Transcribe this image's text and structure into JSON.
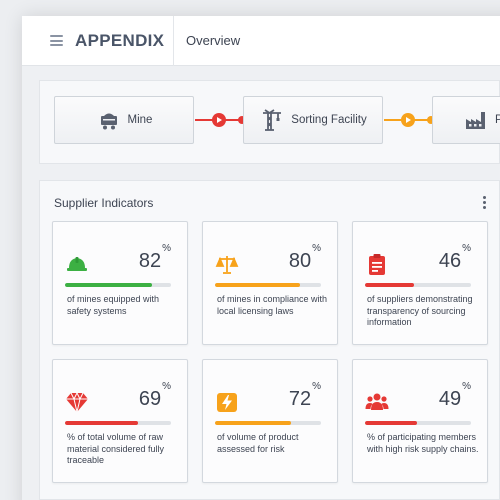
{
  "header": {
    "app_title": "APPENDIX",
    "tab": "Overview"
  },
  "flow": {
    "nodes": [
      {
        "label": "Mine",
        "icon": "mine-cart-icon"
      },
      {
        "label": "Sorting Facility",
        "icon": "crane-icon"
      },
      {
        "label": "Pr",
        "icon": "factory-icon"
      }
    ],
    "colors": {
      "first_link": "#e53935",
      "second_link": "#f7a21b"
    }
  },
  "indicators": {
    "title": "Supplier Indicators",
    "cards": [
      {
        "value": "82",
        "unit": "%",
        "fraction": 0.82,
        "color": "#3cb043",
        "icon": "hard-hat-icon",
        "desc": "of mines equipped with safety systems"
      },
      {
        "value": "80",
        "unit": "%",
        "fraction": 0.8,
        "color": "#f7a21b",
        "icon": "scales-icon",
        "desc": "of mines in compliance with local licensing laws"
      },
      {
        "value": "46",
        "unit": "%",
        "fraction": 0.46,
        "color": "#e53935",
        "icon": "clipboard-icon",
        "desc": "of suppliers demonstrating transparency of sourcing information"
      },
      {
        "value": "69",
        "unit": "%",
        "fraction": 0.69,
        "color": "#e53935",
        "icon": "gem-icon",
        "desc": "% of total volume of raw material considered fully traceable"
      },
      {
        "value": "72",
        "unit": "%",
        "fraction": 0.72,
        "color": "#f7a21b",
        "icon": "warning-icon",
        "desc": "of volume of product assessed for risk"
      },
      {
        "value": "49",
        "unit": "%",
        "fraction": 0.49,
        "color": "#e53935",
        "icon": "group-icon",
        "desc": "% of participating members with high risk supply chains."
      }
    ]
  }
}
